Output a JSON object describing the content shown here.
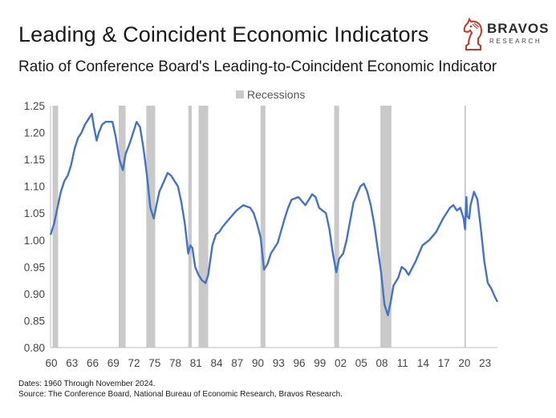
{
  "header": {
    "title": "Leading & Coincident Economic Indicators",
    "subtitle": "Ratio of Conference Board's Leading-to-Coincident Economic Indicator"
  },
  "logo": {
    "name": "BRAVOS",
    "sub": "RESEARCH",
    "icon": "knight-chess-icon",
    "color": "#c0392b"
  },
  "footer": {
    "dates": "Dates: 1960 Through November 2024.",
    "source": "Source: The Conference Board, National Bureau of Economic Research, Bravos Research."
  },
  "chart_data": {
    "type": "line",
    "title": "Ratio of Conference Board's Leading-to-Coincident Economic Indicator",
    "xlabel": "",
    "ylabel": "",
    "xlim": [
      1960,
      2024.9
    ],
    "ylim": [
      0.8,
      1.25
    ],
    "y_ticks": [
      "0.80",
      "0.85",
      "0.90",
      "0.95",
      "1.00",
      "1.05",
      "1.10",
      "1.15",
      "1.20",
      "1.25"
    ],
    "x_ticks": [
      "60",
      "63",
      "66",
      "69",
      "72",
      "75",
      "78",
      "81",
      "84",
      "87",
      "90",
      "93",
      "96",
      "99",
      "02",
      "05",
      "08",
      "11",
      "14",
      "17",
      "20",
      "23"
    ],
    "x_tick_years": [
      1960,
      1963,
      1966,
      1969,
      1972,
      1975,
      1978,
      1981,
      1984,
      1987,
      1990,
      1993,
      1996,
      1999,
      2002,
      2005,
      2008,
      2011,
      2014,
      2017,
      2020,
      2023
    ],
    "grid": false,
    "legend": {
      "position": "top",
      "entries": [
        "Recessions"
      ]
    },
    "colors": {
      "line": "#4472c4",
      "recession": "#c9c9c9"
    },
    "recessions": [
      [
        1960.3,
        1961.1
      ],
      [
        1969.9,
        1970.9
      ],
      [
        1973.9,
        1975.2
      ],
      [
        1980.0,
        1980.5
      ],
      [
        1981.5,
        1982.9
      ],
      [
        1990.5,
        1991.2
      ],
      [
        2001.2,
        2001.9
      ],
      [
        2007.9,
        2009.5
      ],
      [
        2020.1,
        2020.3
      ]
    ],
    "series": [
      {
        "x": [
          1960.0,
          1960.5,
          1961.0,
          1961.5,
          1962.0,
          1962.5,
          1963.0,
          1963.5,
          1964.0,
          1964.5,
          1965.0,
          1965.5,
          1966.0,
          1966.3,
          1966.7,
          1967.0,
          1967.5,
          1968.0,
          1968.5,
          1969.0,
          1969.5,
          1970.0,
          1970.5,
          1970.9,
          1971.5,
          1972.0,
          1972.5,
          1973.0,
          1973.5,
          1974.0,
          1974.5,
          1975.0,
          1975.3,
          1975.8,
          1976.5,
          1977.0,
          1977.5,
          1978.0,
          1978.5,
          1979.0,
          1979.5,
          1980.0,
          1980.3,
          1980.6,
          1981.0,
          1981.5,
          1982.0,
          1982.5,
          1982.9,
          1983.5,
          1984.0,
          1984.5,
          1985.0,
          1986.0,
          1987.0,
          1988.0,
          1989.0,
          1989.5,
          1990.0,
          1990.5,
          1991.0,
          1991.5,
          1992.0,
          1993.0,
          1994.0,
          1994.5,
          1995.0,
          1996.0,
          1997.0,
          1998.0,
          1998.5,
          1999.0,
          1999.5,
          2000.0,
          2000.5,
          2001.0,
          2001.5,
          2001.9,
          2002.5,
          2003.0,
          2003.5,
          2004.0,
          2005.0,
          2005.5,
          2006.0,
          2006.5,
          2007.0,
          2007.5,
          2008.0,
          2008.5,
          2009.0,
          2009.4,
          2009.8,
          2010.5,
          2011.0,
          2011.5,
          2012.0,
          2013.0,
          2014.0,
          2015.0,
          2016.0,
          2017.0,
          2018.0,
          2018.5,
          2019.0,
          2019.5,
          2020.0,
          2020.2,
          2020.4,
          2020.5,
          2020.8,
          2021.0,
          2021.5,
          2022.0,
          2022.5,
          2023.0,
          2023.5,
          2024.0,
          2024.5,
          2024.9
        ],
        "values": [
          1.01,
          1.03,
          1.06,
          1.09,
          1.11,
          1.12,
          1.14,
          1.17,
          1.19,
          1.2,
          1.215,
          1.225,
          1.235,
          1.21,
          1.185,
          1.2,
          1.215,
          1.22,
          1.22,
          1.22,
          1.19,
          1.15,
          1.13,
          1.16,
          1.18,
          1.2,
          1.22,
          1.21,
          1.17,
          1.12,
          1.06,
          1.04,
          1.06,
          1.09,
          1.11,
          1.125,
          1.12,
          1.11,
          1.1,
          1.07,
          1.03,
          0.975,
          0.99,
          0.985,
          0.95,
          0.935,
          0.925,
          0.92,
          0.935,
          0.99,
          1.01,
          1.015,
          1.025,
          1.04,
          1.055,
          1.065,
          1.06,
          1.05,
          1.03,
          1.005,
          0.945,
          0.955,
          0.975,
          0.995,
          1.04,
          1.06,
          1.075,
          1.08,
          1.065,
          1.085,
          1.08,
          1.06,
          1.055,
          1.05,
          1.02,
          0.975,
          0.94,
          0.965,
          0.975,
          1.0,
          1.035,
          1.07,
          1.1,
          1.105,
          1.09,
          1.065,
          1.03,
          0.985,
          0.94,
          0.88,
          0.86,
          0.885,
          0.915,
          0.93,
          0.95,
          0.945,
          0.935,
          0.96,
          0.99,
          1.0,
          1.015,
          1.04,
          1.06,
          1.065,
          1.055,
          1.06,
          1.04,
          1.02,
          1.08,
          1.045,
          1.04,
          1.065,
          1.09,
          1.075,
          1.02,
          0.96,
          0.92,
          0.91,
          0.895,
          0.885
        ]
      }
    ]
  }
}
